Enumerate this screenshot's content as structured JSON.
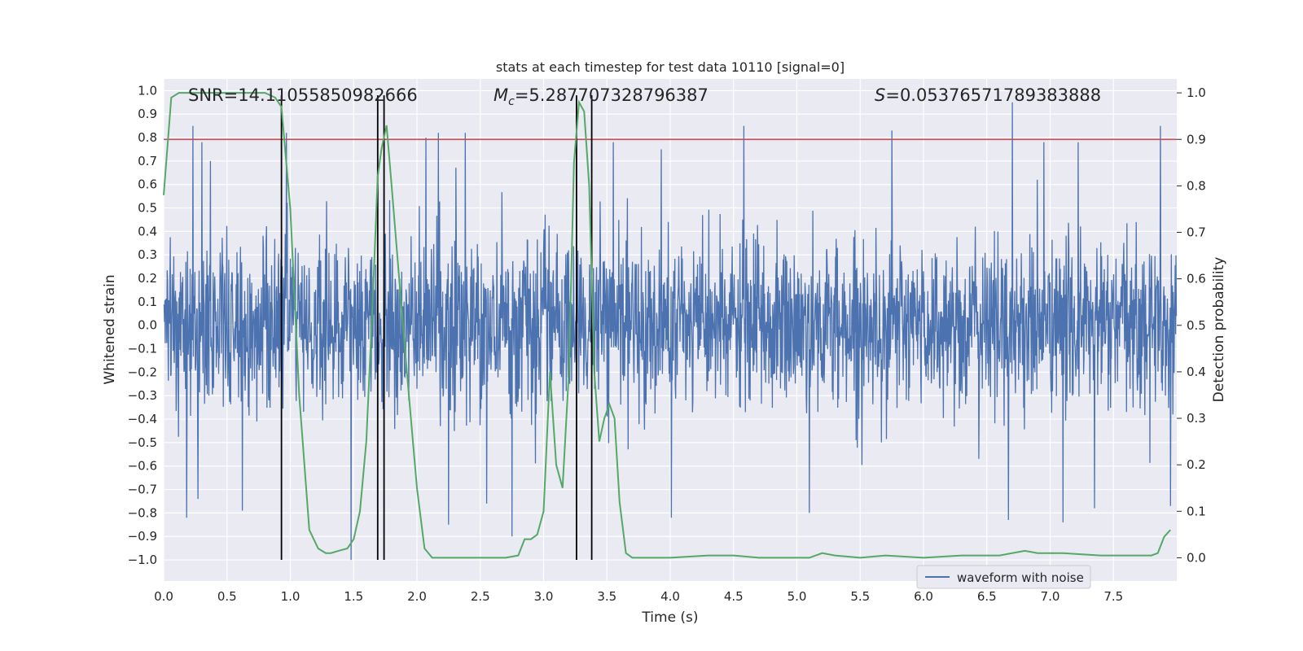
{
  "chart_data": {
    "type": "line",
    "title": "stats at each timestep for test data 10110 [signal=0]",
    "xlabel": "Time (s)",
    "ylabel": "Whitened strain",
    "ylabel_right": "Detection probability",
    "xlim": [
      0.0,
      8.0
    ],
    "ylim": [
      -1.09,
      1.05
    ],
    "ylim_right": [
      -0.05,
      1.03
    ],
    "xticks": [
      "0.0",
      "0.5",
      "1.0",
      "1.5",
      "2.0",
      "2.5",
      "3.0",
      "3.5",
      "4.0",
      "4.5",
      "5.0",
      "5.5",
      "6.0",
      "6.5",
      "7.0",
      "7.5"
    ],
    "yticks": [
      "1.0",
      "0.9",
      "0.8",
      "0.7",
      "0.6",
      "0.5",
      "0.4",
      "0.3",
      "0.2",
      "0.1",
      "0.0",
      "−0.1",
      "−0.2",
      "−0.3",
      "−0.4",
      "−0.5",
      "−0.6",
      "−0.7",
      "−0.8",
      "−0.9",
      "−1.0"
    ],
    "yticks_right": [
      "1.0",
      "0.9",
      "0.8",
      "0.7",
      "0.6",
      "0.5",
      "0.4",
      "0.3",
      "0.2",
      "0.1",
      "0.0"
    ],
    "grid": true,
    "legend_position": "bottom-right",
    "annotations": {
      "snr": "SNR=14.11055850982666",
      "mc_symbol": "M",
      "mc_sub": "c",
      "mc_value": "=5.287707328796387",
      "s_symbol": "S",
      "s_value": "=0.05376571789383888"
    },
    "threshold": {
      "value": 0.9,
      "axis": "right",
      "color": "#c44e52"
    },
    "event_markers_x": [
      0.93,
      1.69,
      1.74,
      3.26,
      3.38
    ],
    "series": [
      {
        "name": "waveform with noise",
        "axis": "left",
        "color": "#4c72b0",
        "kind": "noise",
        "envelope_typical": 0.42,
        "peaks_positive": [
          [
            0.23,
            0.85
          ],
          [
            0.3,
            0.78
          ],
          [
            0.37,
            0.7
          ],
          [
            0.97,
            0.82
          ],
          [
            2.07,
            0.8
          ],
          [
            2.17,
            0.82
          ],
          [
            2.38,
            0.82
          ],
          [
            3.55,
            0.78
          ],
          [
            3.93,
            0.75
          ],
          [
            4.58,
            0.85
          ],
          [
            5.75,
            0.83
          ],
          [
            6.7,
            0.95
          ],
          [
            6.95,
            0.78
          ],
          [
            7.22,
            0.78
          ],
          [
            7.35,
            0.82
          ],
          [
            7.87,
            0.85
          ]
        ],
        "peaks_negative": [
          [
            0.18,
            -0.82
          ],
          [
            0.27,
            -0.74
          ],
          [
            0.62,
            -0.79
          ],
          [
            1.48,
            -1.0
          ],
          [
            2.25,
            -0.85
          ],
          [
            2.55,
            -0.76
          ],
          [
            2.75,
            -0.9
          ],
          [
            4.01,
            -0.82
          ],
          [
            5.1,
            -0.8
          ],
          [
            6.67,
            -0.83
          ],
          [
            7.1,
            -0.84
          ],
          [
            7.35,
            -0.78
          ],
          [
            7.95,
            -0.77
          ]
        ]
      },
      {
        "name": "",
        "axis": "right",
        "color": "#55a868",
        "kind": "line",
        "x": [
          0.0,
          0.06,
          0.12,
          0.2,
          0.3,
          0.5,
          0.7,
          0.8,
          0.88,
          0.93,
          1.0,
          1.07,
          1.15,
          1.22,
          1.28,
          1.32,
          1.38,
          1.45,
          1.5,
          1.55,
          1.6,
          1.65,
          1.69,
          1.72,
          1.76,
          1.8,
          1.86,
          1.92,
          2.0,
          2.06,
          2.12,
          2.2,
          2.3,
          2.5,
          2.7,
          2.8,
          2.85,
          2.9,
          2.95,
          3.0,
          3.05,
          3.1,
          3.15,
          3.2,
          3.24,
          3.28,
          3.32,
          3.36,
          3.4,
          3.44,
          3.48,
          3.52,
          3.56,
          3.6,
          3.65,
          3.7,
          3.8,
          4.0,
          4.3,
          4.5,
          4.7,
          4.9,
          5.1,
          5.2,
          5.3,
          5.5,
          5.7,
          6.0,
          6.3,
          6.6,
          6.8,
          6.9,
          7.1,
          7.4,
          7.6,
          7.8,
          7.85,
          7.9,
          7.95
        ],
        "y": [
          0.78,
          0.99,
          1.0,
          1.0,
          1.0,
          1.0,
          1.0,
          1.0,
          0.99,
          0.97,
          0.75,
          0.35,
          0.06,
          0.02,
          0.01,
          0.01,
          0.015,
          0.02,
          0.04,
          0.1,
          0.25,
          0.55,
          0.82,
          0.88,
          0.93,
          0.8,
          0.6,
          0.4,
          0.15,
          0.02,
          0.0,
          0.0,
          0.0,
          0.0,
          0.0,
          0.005,
          0.04,
          0.04,
          0.05,
          0.1,
          0.4,
          0.2,
          0.15,
          0.4,
          0.85,
          0.98,
          0.96,
          0.8,
          0.4,
          0.25,
          0.3,
          0.33,
          0.3,
          0.12,
          0.01,
          0.0,
          0.0,
          0.0,
          0.005,
          0.005,
          0.0,
          0.0,
          0.0,
          0.01,
          0.005,
          0.0,
          0.005,
          0.0,
          0.005,
          0.005,
          0.015,
          0.01,
          0.01,
          0.005,
          0.005,
          0.005,
          0.01,
          0.045,
          0.06
        ]
      }
    ]
  }
}
